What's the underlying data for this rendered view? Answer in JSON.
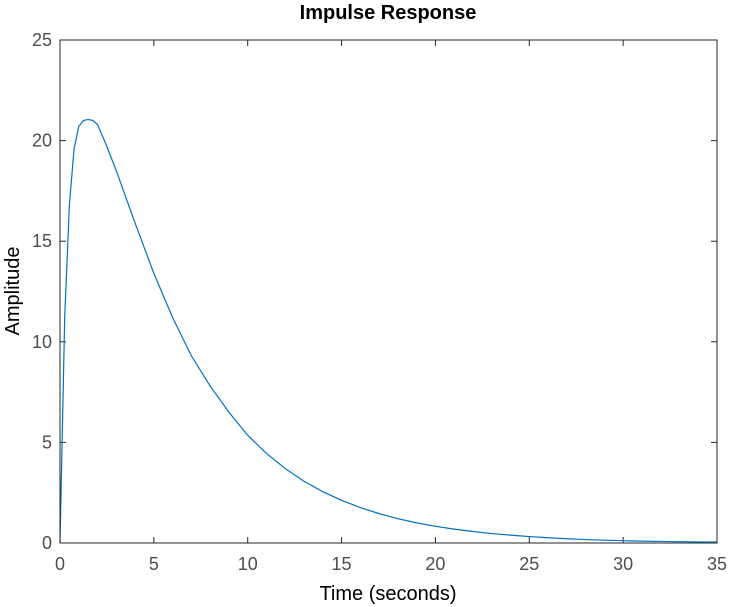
{
  "chart_data": {
    "type": "line",
    "title": "Impulse Response",
    "xlabel": "Time (seconds)",
    "ylabel": "Amplitude",
    "xlim": [
      0,
      35
    ],
    "ylim": [
      0,
      25
    ],
    "xticks": [
      0,
      5,
      10,
      15,
      20,
      25,
      30,
      35
    ],
    "yticks": [
      0,
      5,
      10,
      15,
      20,
      25
    ],
    "grid": false,
    "colors": {
      "series": "#0072BD",
      "axes": "#262626",
      "ticks": "#4d4d4d"
    },
    "series": [
      {
        "x": [
          0,
          0.25,
          0.5,
          0.75,
          1,
          1.25,
          1.5,
          1.75,
          2,
          2.5,
          3,
          3.5,
          4,
          5,
          6,
          7,
          8,
          9,
          10,
          11,
          12,
          13,
          14,
          15,
          16,
          17,
          18,
          19,
          20,
          21,
          22,
          23,
          24,
          25,
          26,
          27,
          28,
          29,
          30,
          31,
          32,
          33,
          34,
          35
        ],
        "values": [
          0,
          11.2,
          16.8,
          19.6,
          20.7,
          21.0,
          21.05,
          21.0,
          20.8,
          19.7,
          18.5,
          17.2,
          15.9,
          13.4,
          11.2,
          9.3,
          7.8,
          6.5,
          5.35,
          4.45,
          3.7,
          3.07,
          2.55,
          2.12,
          1.76,
          1.46,
          1.21,
          1.0,
          0.83,
          0.69,
          0.57,
          0.47,
          0.39,
          0.32,
          0.26,
          0.21,
          0.17,
          0.14,
          0.115,
          0.095,
          0.078,
          0.064,
          0.053,
          0.044
        ]
      }
    ]
  }
}
